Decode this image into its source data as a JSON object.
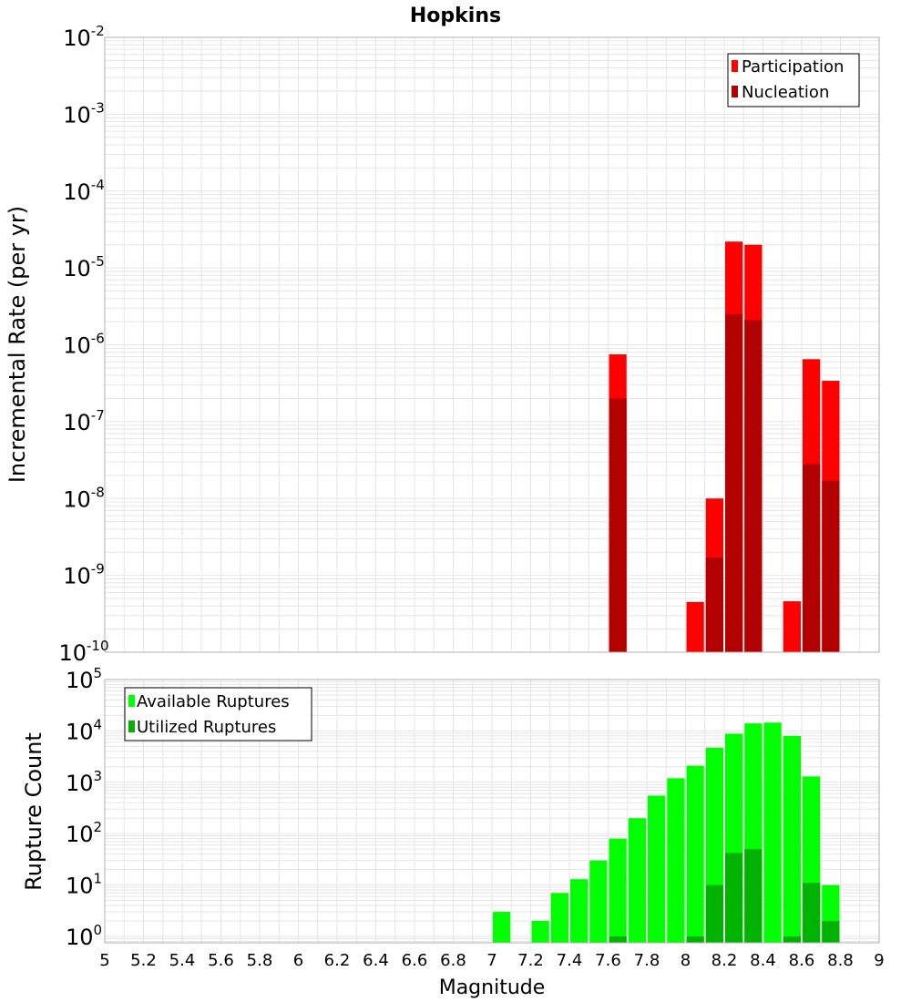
{
  "title": "Hopkins",
  "xlabel": "Magnitude",
  "x_ticks": [
    "5",
    "5.2",
    "5.4",
    "5.6",
    "5.8",
    "6",
    "6.2",
    "6.4",
    "6.6",
    "6.8",
    "7",
    "7.2",
    "7.4",
    "7.6",
    "7.8",
    "8",
    "8.2",
    "8.4",
    "8.6",
    "8.8",
    "9"
  ],
  "colors": {
    "participation": "#ff0000",
    "nucleation": "#b30000",
    "available": "#00ff00",
    "utilized": "#00b300",
    "grid": "#e6e6e6",
    "frame": "#b0b0b0"
  },
  "chart_data": [
    {
      "type": "bar",
      "title": "Hopkins",
      "ylabel": "Incremental Rate (per yr)",
      "xlabel": "",
      "xlim": [
        5,
        9
      ],
      "ylim": [
        1e-10,
        0.01
      ],
      "yscale": "log",
      "grid": true,
      "legend_position": "top-right",
      "y_ticks": [
        {
          "base": "10",
          "exp": "-10"
        },
        {
          "base": "10",
          "exp": "-9"
        },
        {
          "base": "10",
          "exp": "-8"
        },
        {
          "base": "10",
          "exp": "-7"
        },
        {
          "base": "10",
          "exp": "-6"
        },
        {
          "base": "10",
          "exp": "-5"
        },
        {
          "base": "10",
          "exp": "-4"
        },
        {
          "base": "10",
          "exp": "-3"
        },
        {
          "base": "10",
          "exp": "-2"
        }
      ],
      "bin_width": 0.1,
      "x": [
        7.65,
        8.05,
        8.15,
        8.25,
        8.35,
        8.55,
        8.65,
        8.75
      ],
      "series": [
        {
          "name": "Participation",
          "values": [
            7.5e-07,
            4.5e-10,
            1e-08,
            2.2e-05,
            2e-05,
            4.6e-10,
            6.5e-07,
            3.4e-07
          ]
        },
        {
          "name": "Nucleation",
          "values": [
            2e-07,
            null,
            1.7e-09,
            2.5e-06,
            2.1e-06,
            null,
            2.8e-08,
            1.7e-08
          ]
        }
      ]
    },
    {
      "type": "bar",
      "title": "",
      "ylabel": "Rupture Count",
      "xlabel": "Magnitude",
      "xlim": [
        5,
        9
      ],
      "ylim": [
        0.75,
        100000.0
      ],
      "yscale": "log",
      "grid": true,
      "legend_position": "top-left",
      "y_ticks": [
        {
          "base": "10",
          "exp": "0"
        },
        {
          "base": "10",
          "exp": "1"
        },
        {
          "base": "10",
          "exp": "2"
        },
        {
          "base": "10",
          "exp": "3"
        },
        {
          "base": "10",
          "exp": "4"
        },
        {
          "base": "10",
          "exp": "5"
        }
      ],
      "bin_width": 0.1,
      "x": [
        7.05,
        7.25,
        7.35,
        7.45,
        7.55,
        7.65,
        7.75,
        7.85,
        7.95,
        8.05,
        8.15,
        8.25,
        8.35,
        8.45,
        8.55,
        8.65,
        8.75
      ],
      "series": [
        {
          "name": "Available Ruptures",
          "values": [
            3,
            2,
            7,
            13,
            30,
            80,
            200,
            550,
            1200,
            2100,
            4700,
            8800,
            14000,
            14500,
            8000,
            1300,
            10
          ]
        },
        {
          "name": "Utilized Ruptures",
          "values": [
            null,
            null,
            null,
            null,
            null,
            1,
            null,
            null,
            null,
            1,
            10,
            42,
            50,
            null,
            1,
            11,
            2
          ]
        }
      ]
    }
  ]
}
